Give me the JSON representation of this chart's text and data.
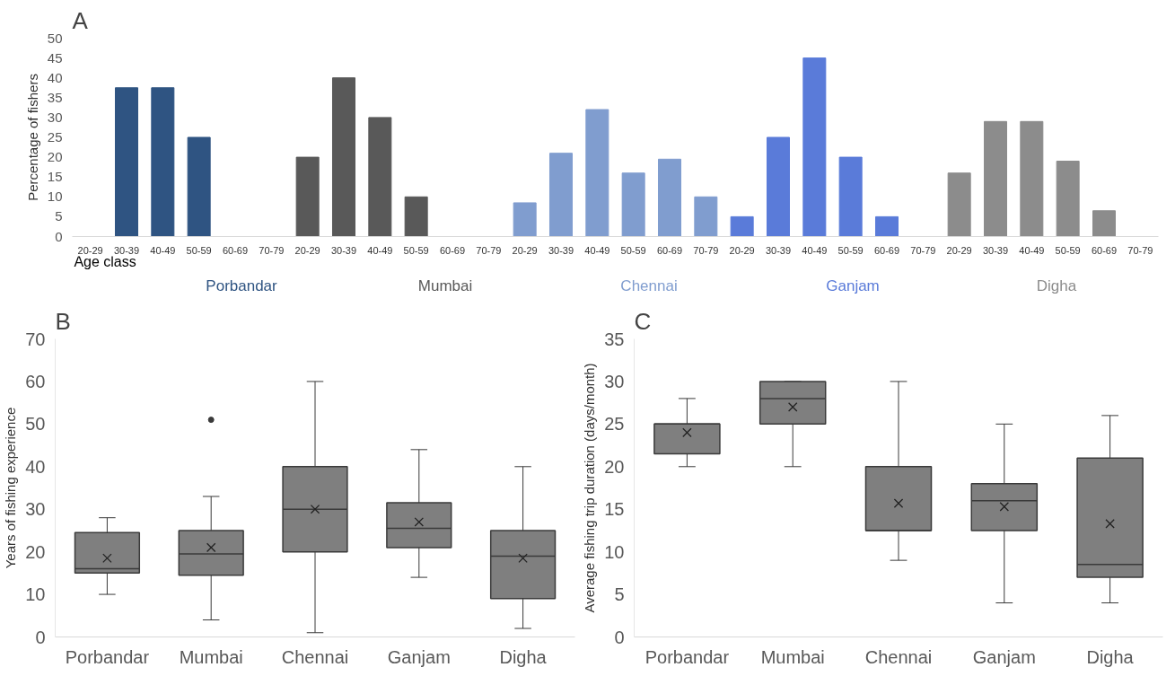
{
  "chart_data": [
    {
      "type": "bar",
      "title": "A",
      "ylabel": "Percentage of fishers",
      "xlabel": "Age class",
      "categories": [
        "20-29",
        "30-39",
        "40-49",
        "50-59",
        "60-69",
        "70-79",
        "20-29",
        "30-39",
        "40-49",
        "50-59",
        "60-69",
        "70-79",
        "20-29",
        "30-39",
        "40-49",
        "50-59",
        "60-69",
        "70-79",
        "20-29",
        "30-39",
        "40-49",
        "50-59",
        "60-69",
        "70-79",
        "20-29",
        "30-39",
        "40-49",
        "50-59",
        "60-69",
        "70-79"
      ],
      "series": [
        {
          "name": "Porbandar",
          "color": "#2f5482",
          "values": [
            0,
            37.5,
            37.5,
            25,
            0,
            0,
            null,
            null,
            null,
            null,
            null,
            null,
            null,
            null,
            null,
            null,
            null,
            null,
            null,
            null,
            null,
            null,
            null,
            null,
            null,
            null,
            null,
            null,
            null,
            null
          ]
        },
        {
          "name": "Mumbai",
          "color": "#595959",
          "values": [
            null,
            null,
            null,
            null,
            null,
            null,
            20,
            40,
            30,
            10,
            0,
            0,
            null,
            null,
            null,
            null,
            null,
            null,
            null,
            null,
            null,
            null,
            null,
            null,
            null,
            null,
            null,
            null,
            null,
            null
          ]
        },
        {
          "name": "Chennai",
          "color": "#809dcf",
          "values": [
            null,
            null,
            null,
            null,
            null,
            null,
            null,
            null,
            null,
            null,
            null,
            null,
            8.5,
            21,
            32,
            16,
            19.5,
            10,
            null,
            null,
            null,
            null,
            null,
            null,
            null,
            null,
            null,
            null,
            null,
            null
          ]
        },
        {
          "name": "Ganjam",
          "color": "#5a7bd9",
          "values": [
            null,
            null,
            null,
            null,
            null,
            null,
            null,
            null,
            null,
            null,
            null,
            null,
            null,
            null,
            null,
            null,
            null,
            null,
            5,
            25,
            45,
            20,
            5,
            0,
            null,
            null,
            null,
            null,
            null,
            null
          ]
        },
        {
          "name": "Digha",
          "color": "#8c8c8c",
          "values": [
            null,
            null,
            null,
            null,
            null,
            null,
            null,
            null,
            null,
            null,
            null,
            null,
            null,
            null,
            null,
            null,
            null,
            null,
            null,
            null,
            null,
            null,
            null,
            null,
            16,
            29,
            29,
            19,
            6.5,
            0
          ]
        }
      ],
      "ylim": [
        0,
        50
      ],
      "yticks": [
        0,
        5,
        10,
        15,
        20,
        25,
        30,
        35,
        40,
        45,
        50
      ],
      "grid": false,
      "legend": false
    },
    {
      "type": "box",
      "title": "B",
      "ylabel": "Years of fishing experience",
      "categories": [
        "Porbandar",
        "Mumbai",
        "Chennai",
        "Ganjam",
        "Digha"
      ],
      "series": [
        {
          "color": "#7f7f7f",
          "boxes": [
            {
              "low": 10,
              "q1": 15,
              "median": 16,
              "q3": 24.5,
              "high": 28,
              "mean": 18.5
            },
            {
              "low": 4,
              "q1": 14.5,
              "median": 19.5,
              "q3": 25,
              "high": 33,
              "mean": 21,
              "outliers": [
                51
              ]
            },
            {
              "low": 1,
              "q1": 20,
              "median": 30,
              "q3": 40,
              "high": 60,
              "mean": 30
            },
            {
              "low": 14,
              "q1": 21,
              "median": 25.5,
              "q3": 31.5,
              "high": 44,
              "mean": 27
            },
            {
              "low": 2,
              "q1": 9,
              "median": 19,
              "q3": 25,
              "high": 40,
              "mean": 18.5
            }
          ]
        }
      ],
      "ylim": [
        0,
        70
      ],
      "yticks": [
        0,
        10,
        20,
        30,
        40,
        50,
        60,
        70
      ],
      "grid": false,
      "legend": false
    },
    {
      "type": "box",
      "title": "C",
      "ylabel": "Average fishing trip duration (days/month)",
      "categories": [
        "Porbandar",
        "Mumbai",
        "Chennai",
        "Ganjam",
        "Digha"
      ],
      "series": [
        {
          "color": "#7f7f7f",
          "boxes": [
            {
              "low": 20,
              "q1": 21.5,
              "median": 25,
              "q3": 25,
              "high": 28,
              "mean": 24
            },
            {
              "low": 20,
              "q1": 25,
              "median": 28,
              "q3": 30,
              "high": 30,
              "mean": 27
            },
            {
              "low": 9,
              "q1": 12.5,
              "median": 12.5,
              "q3": 20,
              "high": 30,
              "mean": 15.7
            },
            {
              "low": 4,
              "q1": 12.5,
              "median": 16,
              "q3": 18,
              "high": 25,
              "mean": 15.3
            },
            {
              "low": 4,
              "q1": 7,
              "median": 8.5,
              "q3": 21,
              "high": 26,
              "mean": 13.3
            }
          ]
        }
      ],
      "ylim": [
        0,
        35
      ],
      "yticks": [
        0,
        5,
        10,
        15,
        20,
        25,
        30,
        35
      ],
      "grid": false,
      "legend": false
    }
  ]
}
